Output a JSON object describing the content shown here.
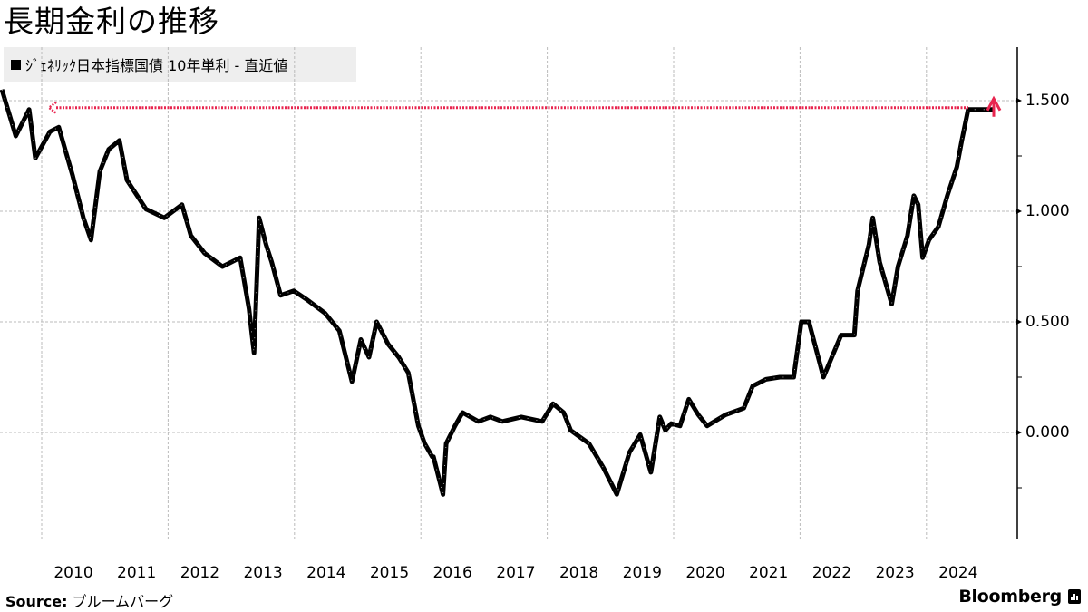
{
  "header": {
    "title": "長期金利の推移",
    "legend_label": "ｼﾞｪﾈﾘｯｸ日本指標国債 10年単利 - 直近値"
  },
  "footer": {
    "source_label": "Source:",
    "source_value": "ブルームバーグ",
    "brand": "Bloomberg"
  },
  "colors": {
    "series": "#000000",
    "grid": "#bbbbbb",
    "annotation": "#e8254f",
    "legend_bg": "#eeeeee"
  },
  "chart_data": {
    "type": "line",
    "subtype": "candlestick-like daily series",
    "title": "長期金利の推移",
    "xlabel": "",
    "ylabel": "",
    "x_ticks": [
      "2010",
      "2011",
      "2012",
      "2013",
      "2014",
      "2015",
      "2016",
      "2017",
      "2018",
      "2019",
      "2020",
      "2021",
      "2022",
      "2023",
      "2024"
    ],
    "y_ticks": [
      0.0,
      0.5,
      1.0,
      1.5
    ],
    "y_tick_labels": [
      "0.000",
      "0.500",
      "1.000",
      "1.500"
    ],
    "ylim": [
      -0.47,
      1.75
    ],
    "xlim": [
      2009.34,
      2025.45
    ],
    "grid": true,
    "legend_position": "top-left",
    "y_axis_side": "right",
    "series": [
      {
        "name": "ｼﾞｪﾈﾘｯｸ日本指標国債 10年単利 - 直近値",
        "x": [
          2009.37,
          2009.59,
          2009.8,
          2009.9,
          2010.13,
          2010.27,
          2010.49,
          2010.66,
          2010.78,
          2010.92,
          2011.06,
          2011.23,
          2011.35,
          2011.65,
          2011.94,
          2012.22,
          2012.36,
          2012.58,
          2012.86,
          2013.14,
          2013.28,
          2013.36,
          2013.44,
          2013.55,
          2013.64,
          2013.78,
          2013.99,
          2014.2,
          2014.48,
          2014.71,
          2014.91,
          2015.05,
          2015.18,
          2015.3,
          2015.48,
          2015.65,
          2015.8,
          2015.96,
          2016.06,
          2016.18,
          2016.2,
          2016.35,
          2016.4,
          2016.54,
          2016.66,
          2016.91,
          2017.1,
          2017.29,
          2017.59,
          2017.92,
          2018.09,
          2018.26,
          2018.37,
          2018.66,
          2018.89,
          2019.1,
          2019.3,
          2019.47,
          2019.64,
          2019.78,
          2019.87,
          2019.96,
          2020.1,
          2020.24,
          2020.39,
          2020.53,
          2020.82,
          2021.11,
          2021.25,
          2021.46,
          2021.68,
          2021.9,
          2022.02,
          2022.14,
          2022.37,
          2022.65,
          2022.86,
          2022.91,
          2023.09,
          2023.15,
          2023.26,
          2023.45,
          2023.55,
          2023.7,
          2023.8,
          2023.87,
          2023.94,
          2024.04,
          2024.19,
          2024.33,
          2024.48,
          2024.56,
          2024.66,
          2024.76,
          2024.87,
          2024.97,
          2025.03,
          2025.07
        ],
        "values": [
          1.55,
          1.34,
          1.46,
          1.24,
          1.36,
          1.38,
          1.16,
          0.97,
          0.87,
          1.18,
          1.28,
          1.32,
          1.14,
          1.01,
          0.97,
          1.03,
          0.89,
          0.81,
          0.75,
          0.79,
          0.56,
          0.36,
          0.97,
          0.85,
          0.77,
          0.62,
          0.64,
          0.6,
          0.54,
          0.46,
          0.23,
          0.42,
          0.34,
          0.5,
          0.4,
          0.34,
          0.27,
          0.03,
          -0.05,
          -0.11,
          -0.11,
          -0.28,
          -0.05,
          0.03,
          0.09,
          0.05,
          0.07,
          0.05,
          0.07,
          0.05,
          0.13,
          0.09,
          0.01,
          -0.05,
          -0.16,
          -0.28,
          -0.09,
          -0.01,
          -0.18,
          0.07,
          0.01,
          0.04,
          0.03,
          0.15,
          0.08,
          0.03,
          0.08,
          0.11,
          0.21,
          0.24,
          0.25,
          0.25,
          0.5,
          0.5,
          0.25,
          0.44,
          0.44,
          0.64,
          0.85,
          0.97,
          0.77,
          0.58,
          0.75,
          0.89,
          1.07,
          1.03,
          0.79,
          0.87,
          0.93,
          1.07,
          1.2,
          1.32,
          1.46,
          1.46,
          1.46,
          1.46,
          1.46,
          1.46
        ]
      }
    ],
    "annotations": [
      {
        "type": "dotted-arrow",
        "color": "#e8254f",
        "from_value": 1.46,
        "label": "horizontal dotted line at latest level (~1.46) pointing left to 2010 level"
      },
      {
        "type": "up-arrow",
        "color": "#e8254f",
        "at_value": 1.5,
        "label": "latest value arrow"
      }
    ]
  }
}
